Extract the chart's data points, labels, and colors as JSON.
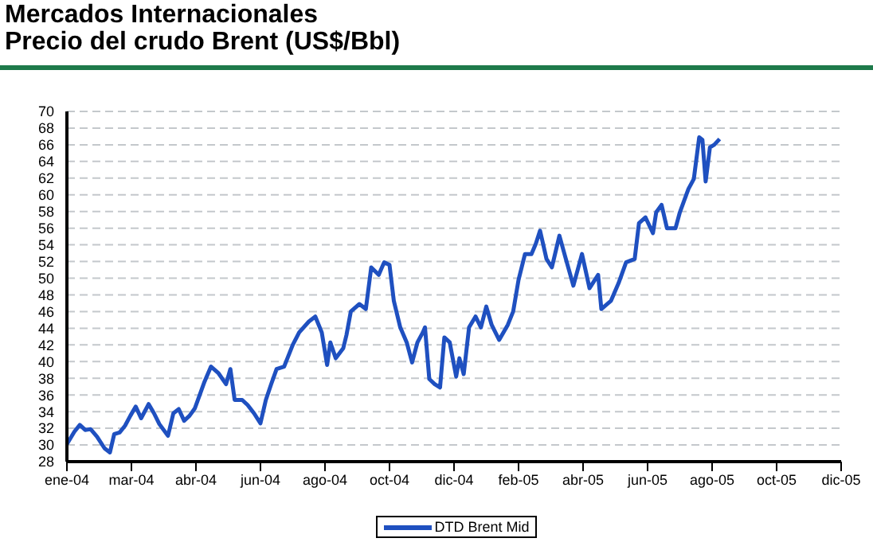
{
  "chart_data": {
    "type": "line",
    "title": "Mercados Internacionales",
    "subtitle": "Precio del crudo Brent (US$/Bbl)",
    "x": [
      "2004-01-01",
      "2004-01-08",
      "2004-01-13",
      "2004-01-18",
      "2004-01-23",
      "2004-01-29",
      "2004-02-05",
      "2004-02-10",
      "2004-02-14",
      "2004-02-19",
      "2004-02-24",
      "2004-02-29",
      "2004-03-05",
      "2004-03-10",
      "2004-03-17",
      "2004-03-22",
      "2004-03-27",
      "2004-04-04",
      "2004-04-09",
      "2004-04-14",
      "2004-04-19",
      "2004-04-24",
      "2004-04-29",
      "2004-05-08",
      "2004-05-14",
      "2004-05-21",
      "2004-05-28",
      "2004-06-01",
      "2004-06-05",
      "2004-06-12",
      "2004-06-17",
      "2004-06-23",
      "2004-06-29",
      "2004-07-04",
      "2004-07-09",
      "2004-07-14",
      "2004-07-21",
      "2004-07-29",
      "2004-08-04",
      "2004-08-13",
      "2004-08-19",
      "2004-08-25",
      "2004-08-30",
      "2004-09-02",
      "2004-09-07",
      "2004-09-14",
      "2004-09-17",
      "2004-09-21",
      "2004-09-29",
      "2004-10-05",
      "2004-10-10",
      "2004-10-17",
      "2004-10-22",
      "2004-10-27",
      "2004-10-31",
      "2004-11-06",
      "2004-11-12",
      "2004-11-17",
      "2004-11-22",
      "2004-11-27",
      "2004-11-29",
      "2004-12-03",
      "2004-12-08",
      "2004-12-13",
      "2004-12-17",
      "2004-12-22",
      "2004-12-28",
      "2004-12-31",
      "2005-01-04",
      "2005-01-09",
      "2005-01-15",
      "2005-01-20",
      "2005-01-25",
      "2005-01-30",
      "2005-02-06",
      "2005-02-14",
      "2005-02-19",
      "2005-02-24",
      "2005-03-02",
      "2005-03-08",
      "2005-03-12",
      "2005-03-16",
      "2005-03-22",
      "2005-03-27",
      "2005-04-03",
      "2005-04-09",
      "2005-04-16",
      "2005-04-24",
      "2005-05-01",
      "2005-05-09",
      "2005-05-12",
      "2005-05-21",
      "2005-05-28",
      "2005-06-04",
      "2005-06-12",
      "2005-06-16",
      "2005-06-22",
      "2005-06-29",
      "2005-07-02",
      "2005-07-07",
      "2005-07-12",
      "2005-07-20",
      "2005-07-24",
      "2005-08-01",
      "2005-08-06",
      "2005-08-11",
      "2005-08-14",
      "2005-08-17",
      "2005-08-21",
      "2005-08-25",
      "2005-08-30"
    ],
    "series": [
      {
        "name": "DTD Brent Mid",
        "color": "#1f50c0",
        "values": [
          30.1,
          31.6,
          32.4,
          31.8,
          31.9,
          31.0,
          29.6,
          29.1,
          31.3,
          31.5,
          32.3,
          33.5,
          34.6,
          33.2,
          34.9,
          33.8,
          32.5,
          31.1,
          33.8,
          34.3,
          32.9,
          33.5,
          34.4,
          37.6,
          39.4,
          38.6,
          37.3,
          39.1,
          35.4,
          35.4,
          34.8,
          33.8,
          32.6,
          35.4,
          37.3,
          39.1,
          39.4,
          42.0,
          43.5,
          44.8,
          45.4,
          43.5,
          39.6,
          42.3,
          40.4,
          41.6,
          43.2,
          46.0,
          46.9,
          46.3,
          51.3,
          50.4,
          51.9,
          51.6,
          47.3,
          44.1,
          42.3,
          39.9,
          42.3,
          43.5,
          44.1,
          37.9,
          37.3,
          36.9,
          42.9,
          42.3,
          38.2,
          40.4,
          38.5,
          44.1,
          45.4,
          44.1,
          46.6,
          44.4,
          42.6,
          44.4,
          46.0,
          49.8,
          52.9,
          52.9,
          54.1,
          55.7,
          52.3,
          51.3,
          55.1,
          52.3,
          49.1,
          52.9,
          48.8,
          50.4,
          46.3,
          47.3,
          49.4,
          51.9,
          52.3,
          56.6,
          57.3,
          55.4,
          57.9,
          58.8,
          56.0,
          56.0,
          57.9,
          60.7,
          61.9,
          66.9,
          66.6,
          61.6,
          65.7,
          66.0,
          66.7
        ]
      }
    ],
    "xlim": [
      "2004-01-01",
      "2005-12-21"
    ],
    "xticks": [
      {
        "value": "2004-01-01",
        "label": "ene-04"
      },
      {
        "value": "2004-03-01",
        "label": "mar-04"
      },
      {
        "value": "2004-04-30",
        "label": "abr-04"
      },
      {
        "value": "2004-06-29",
        "label": "jun-04"
      },
      {
        "value": "2004-08-28",
        "label": "ago-04"
      },
      {
        "value": "2004-10-27",
        "label": "oct-04"
      },
      {
        "value": "2004-12-26",
        "label": "dic-04"
      },
      {
        "value": "2005-02-24",
        "label": "feb-05"
      },
      {
        "value": "2005-04-25",
        "label": "abr-05"
      },
      {
        "value": "2005-06-24",
        "label": "jun-05"
      },
      {
        "value": "2005-08-23",
        "label": "ago-05"
      },
      {
        "value": "2005-10-22",
        "label": "oct-05"
      },
      {
        "value": "2005-12-21",
        "label": "dic-05"
      }
    ],
    "ylim": [
      28,
      70
    ],
    "yticks": [
      28,
      30,
      32,
      34,
      36,
      38,
      40,
      42,
      44,
      46,
      48,
      50,
      52,
      54,
      56,
      58,
      60,
      62,
      64,
      66,
      68,
      70
    ],
    "grid": "y",
    "legend": "bottom",
    "marker": "none",
    "line_style": "solid"
  }
}
